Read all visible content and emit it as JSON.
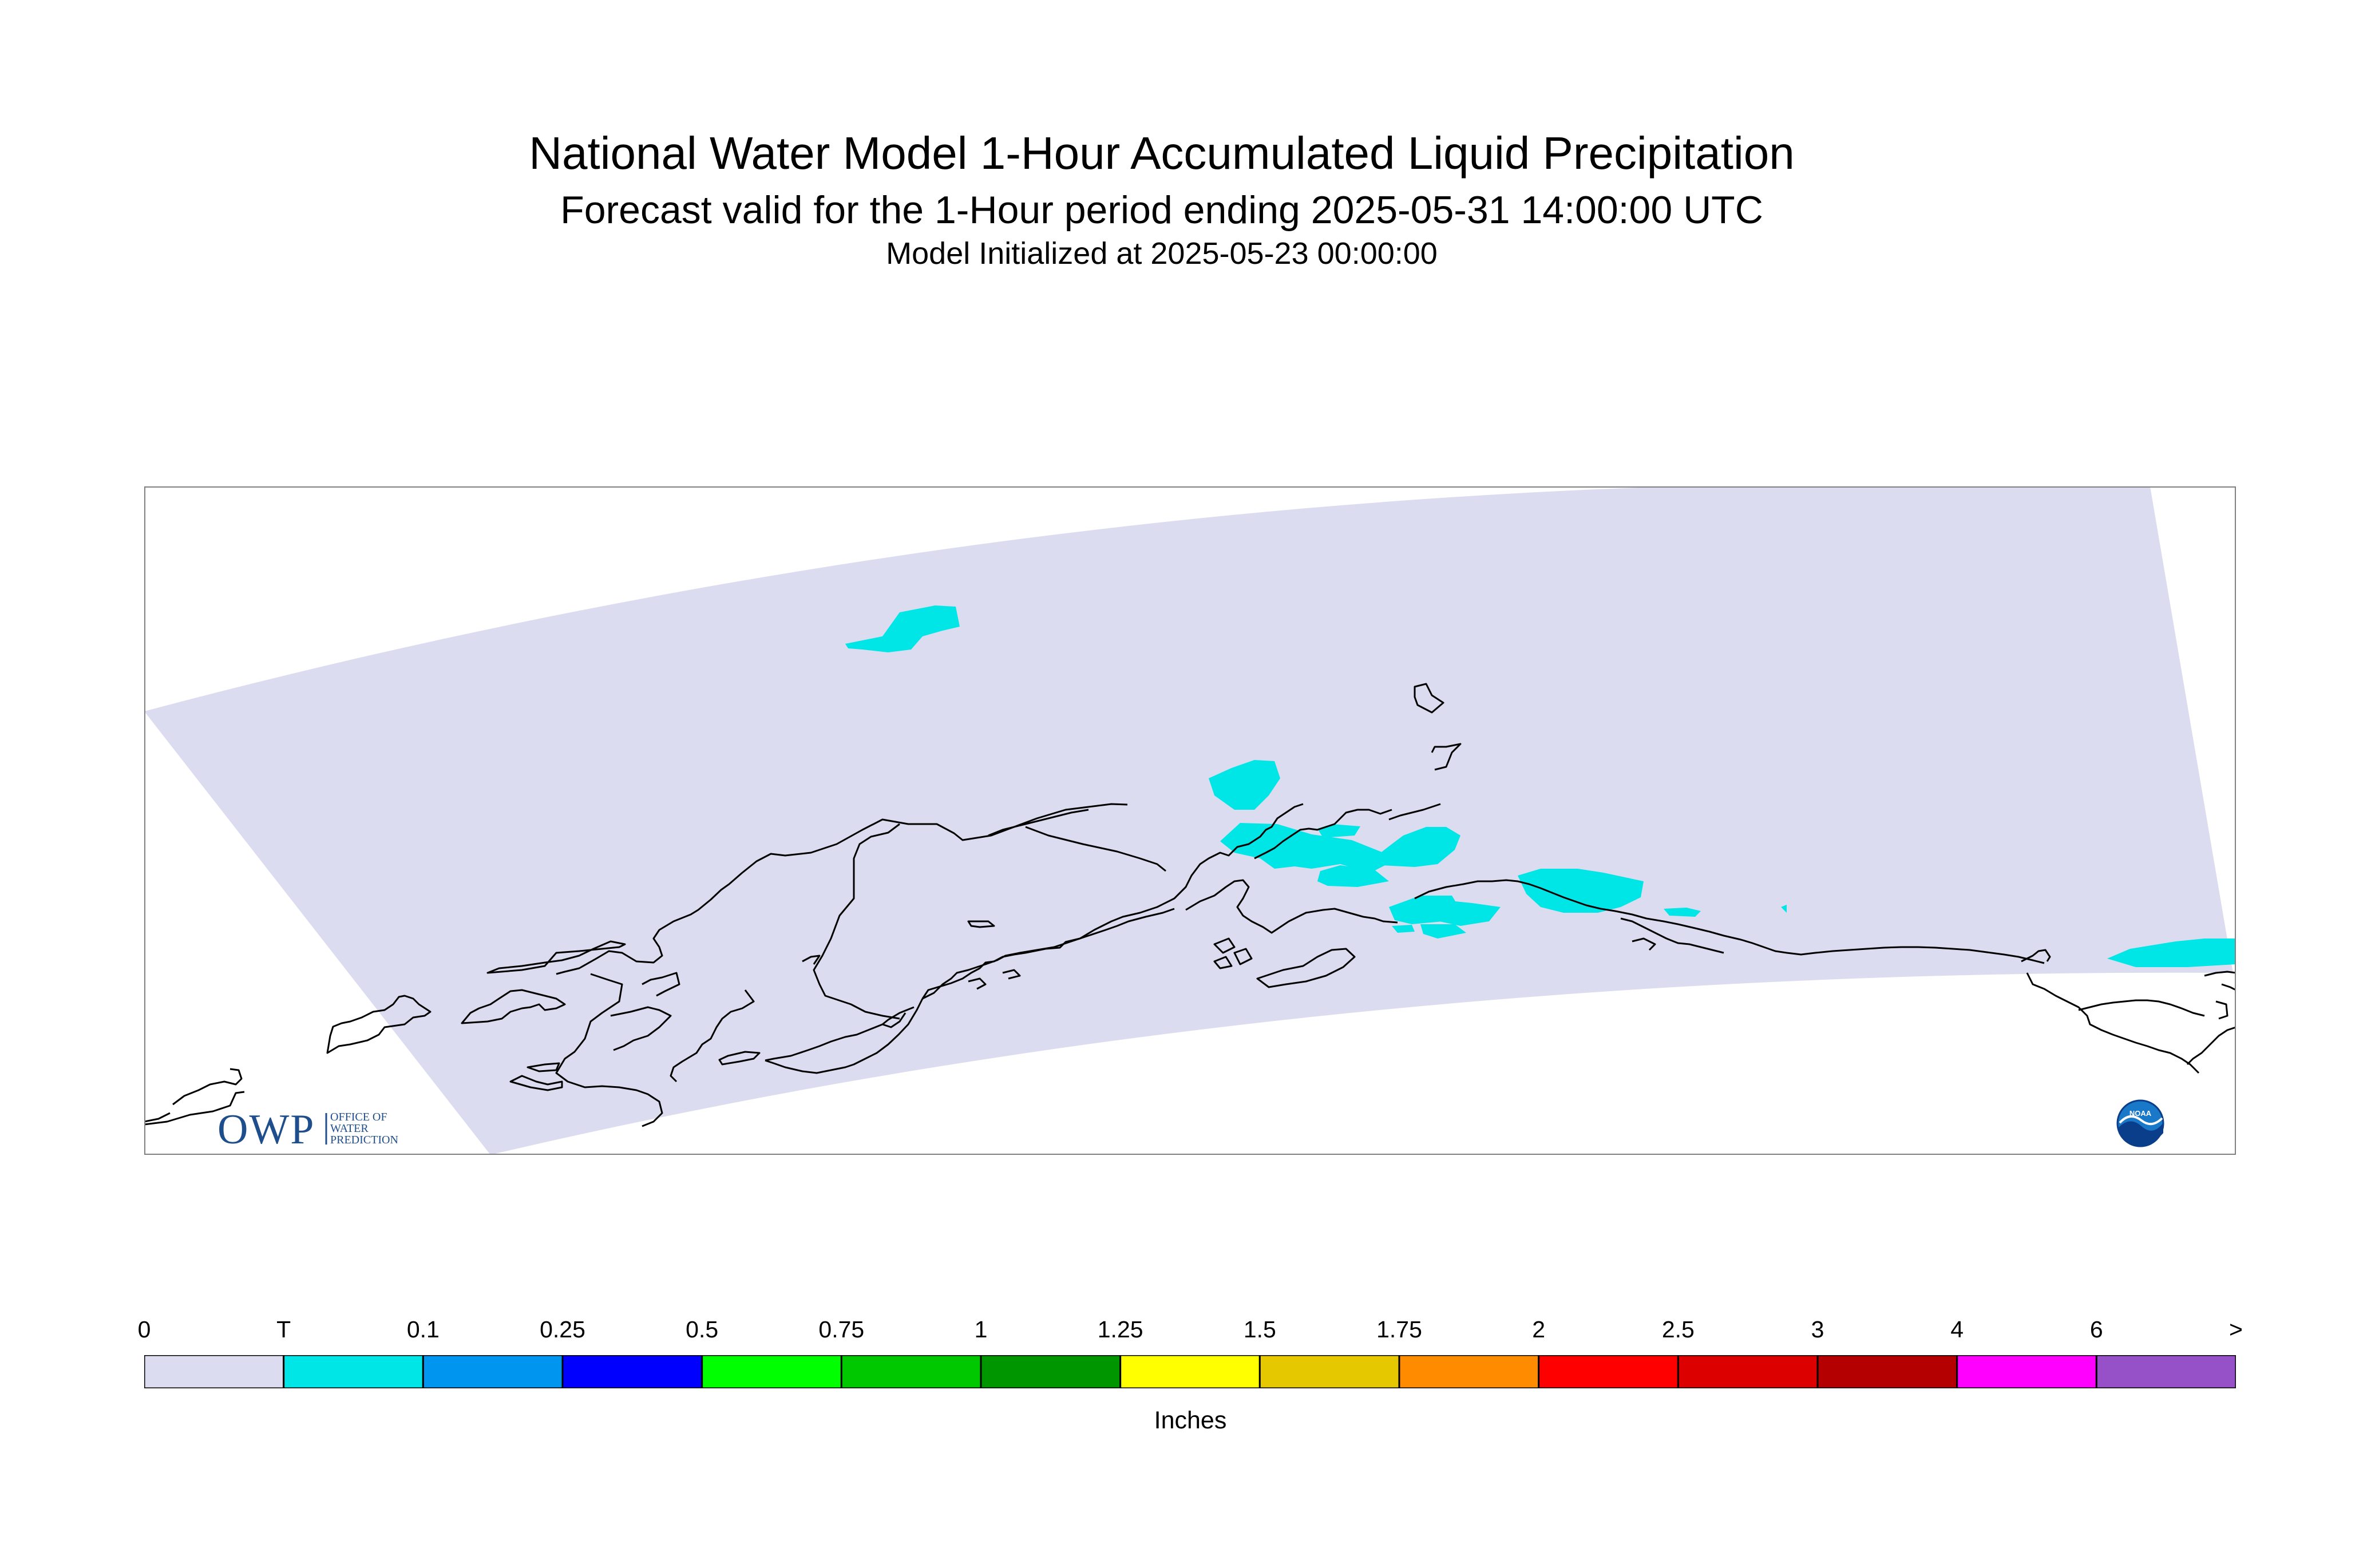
{
  "title": "National Water Model 1-Hour Accumulated Liquid Precipitation",
  "subtitle": "Forecast valid for the 1-Hour period ending 2025-05-31 14:00:00 UTC",
  "init_line": "Model Initialized at 2025-05-23 00:00:00",
  "map": {
    "region": "Alaska",
    "domain_fill_color": "#dcdcf0",
    "coastline_color": "#000000",
    "precip_color": "#00e6e6",
    "precip_class": "T to 0.1 inches"
  },
  "logos": {
    "owp_text": "OWP",
    "owp_sub": [
      "OFFICE OF",
      "WATER",
      "PREDICTION"
    ],
    "noaa_text": "NOAA"
  },
  "legend": {
    "units": "Inches",
    "labels": [
      "0",
      "T",
      "0.1",
      "0.25",
      "0.5",
      "0.75",
      "1",
      "1.25",
      "1.5",
      "1.75",
      "2",
      "2.5",
      "3",
      "4",
      "6",
      ">"
    ],
    "colors": [
      "#dcdcf0",
      "#00e6e6",
      "#0096f0",
      "#0000ff",
      "#00ff00",
      "#00c800",
      "#009600",
      "#ffff00",
      "#e6c800",
      "#ff8c00",
      "#ff0000",
      "#dc0000",
      "#b40000",
      "#ff00ff",
      "#9650c8"
    ]
  }
}
